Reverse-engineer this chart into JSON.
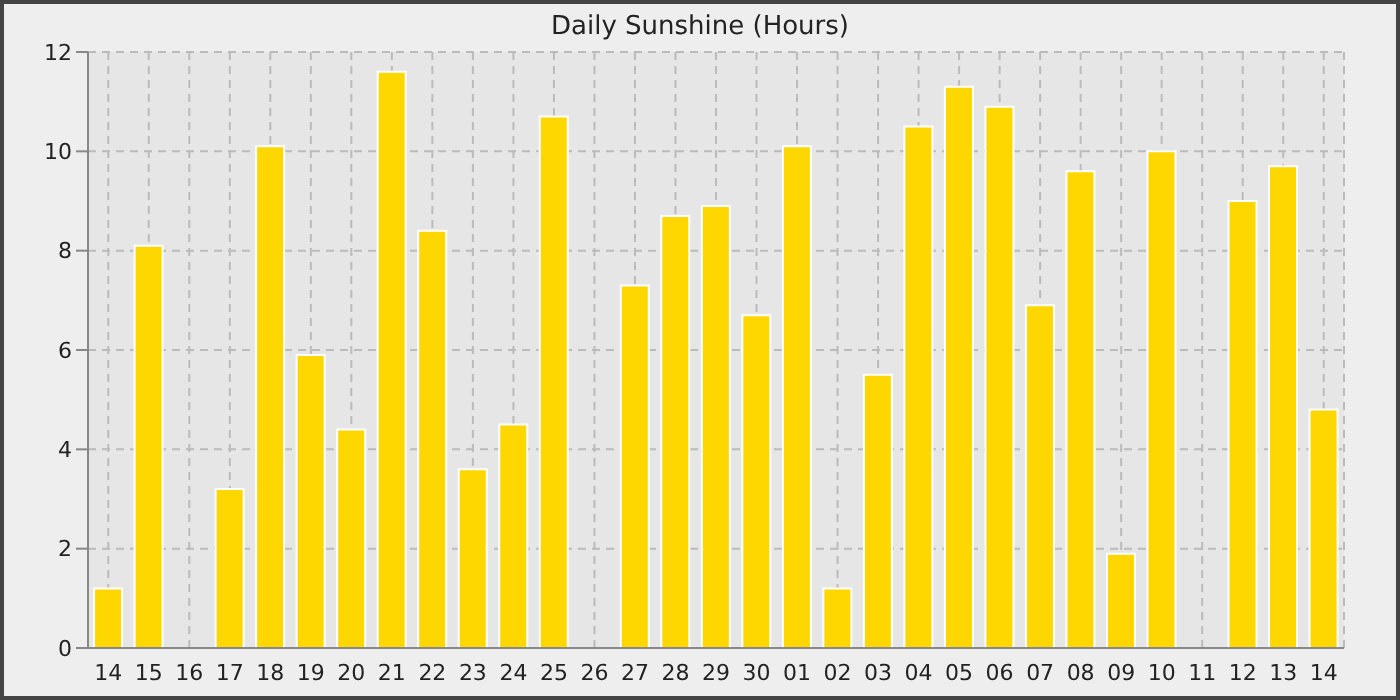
{
  "chart_data": {
    "type": "bar",
    "title": "Daily Sunshine (Hours)",
    "categories": [
      "14",
      "15",
      "16",
      "17",
      "18",
      "19",
      "20",
      "21",
      "22",
      "23",
      "24",
      "25",
      "26",
      "27",
      "28",
      "29",
      "30",
      "01",
      "02",
      "03",
      "04",
      "05",
      "06",
      "07",
      "08",
      "09",
      "10",
      "11",
      "12",
      "13",
      "14"
    ],
    "values": [
      1.2,
      8.1,
      0,
      3.2,
      10.1,
      5.9,
      4.4,
      11.6,
      8.4,
      3.6,
      4.5,
      10.7,
      0,
      7.3,
      8.7,
      8.9,
      6.7,
      10.1,
      1.2,
      5.5,
      10.5,
      11.3,
      10.9,
      6.9,
      9.6,
      1.9,
      10.0,
      0,
      9.0,
      9.7,
      4.8
    ],
    "color": "#ffd700",
    "ylim": [
      0,
      12
    ],
    "yticks": [
      0,
      2,
      4,
      6,
      8,
      10,
      12
    ],
    "grid": true
  }
}
